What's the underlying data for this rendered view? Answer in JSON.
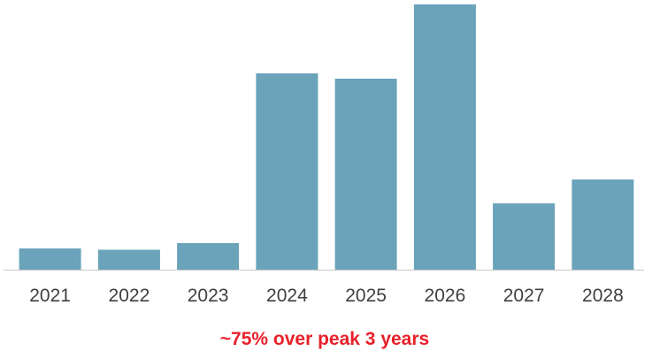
{
  "chart_data": {
    "type": "bar",
    "categories": [
      "2021",
      "2022",
      "2023",
      "2024",
      "2025",
      "2026",
      "2027",
      "2028"
    ],
    "values": [
      8,
      7.5,
      10,
      74,
      72,
      100,
      25,
      34
    ],
    "ylim": [
      0,
      100
    ],
    "grid": false,
    "legend": "none",
    "annotation": "~75% over peak 3 years",
    "colors": {
      "bar": "#6aa3ba",
      "annotation": "#e8202a",
      "axis": "#c9c9c9",
      "tick_label": "#404040"
    }
  }
}
